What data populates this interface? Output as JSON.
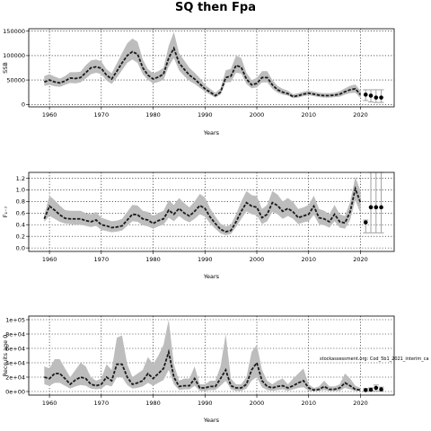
{
  "figure": {
    "title": "SQ then Fpa"
  },
  "chart_data": [
    {
      "type": "area",
      "ylabel": "SSB",
      "xlabel": "Years",
      "xlim": [
        1956,
        2026.5
      ],
      "ylim": [
        -5000,
        155000
      ],
      "xticks": [
        1960,
        1970,
        1980,
        1990,
        2000,
        2010,
        2020
      ],
      "xtick_labels": [
        "1960",
        "1970",
        "1980",
        "1990",
        "2000",
        "2010",
        "2020"
      ],
      "yticks": [
        0,
        50000,
        100000,
        150000
      ],
      "ytick_labels": [
        "0",
        "50000",
        "100000",
        "150000"
      ],
      "grid": true,
      "years": [
        1959,
        1960,
        1961,
        1962,
        1963,
        1964,
        1965,
        1966,
        1967,
        1968,
        1969,
        1970,
        1971,
        1972,
        1973,
        1974,
        1975,
        1976,
        1977,
        1978,
        1979,
        1980,
        1981,
        1982,
        1983,
        1984,
        1985,
        1986,
        1987,
        1988,
        1989,
        1990,
        1991,
        1992,
        1993,
        1994,
        1995,
        1996,
        1997,
        1998,
        1999,
        2000,
        2001,
        2002,
        2003,
        2004,
        2005,
        2006,
        2007,
        2008,
        2009,
        2010,
        2011,
        2012,
        2013,
        2014,
        2015,
        2016,
        2017,
        2018,
        2019,
        2020
      ],
      "median": [
        46000,
        50000,
        46000,
        44000,
        48000,
        54000,
        53000,
        55000,
        65000,
        75000,
        77000,
        74000,
        60000,
        52000,
        68000,
        85000,
        100000,
        108000,
        103000,
        75000,
        60000,
        52000,
        56000,
        62000,
        95000,
        115000,
        85000,
        72000,
        60000,
        52000,
        42000,
        32000,
        25000,
        18000,
        25000,
        55000,
        58000,
        80000,
        76000,
        52000,
        40000,
        43000,
        55000,
        55000,
        40000,
        30000,
        25000,
        22000,
        16000,
        18000,
        21000,
        23000,
        21000,
        19000,
        18000,
        18000,
        19000,
        21000,
        26000,
        30000,
        32000,
        20000
      ],
      "lower": [
        38000,
        40000,
        37000,
        36000,
        40000,
        44000,
        43000,
        45000,
        53000,
        62000,
        65000,
        62000,
        49000,
        42000,
        55000,
        70000,
        85000,
        92000,
        85000,
        62000,
        50000,
        43000,
        46000,
        50000,
        78000,
        95000,
        70000,
        58000,
        48000,
        42000,
        34000,
        26000,
        20000,
        14000,
        20000,
        45000,
        46000,
        65000,
        63000,
        42000,
        33000,
        35000,
        45000,
        45000,
        32000,
        24000,
        20000,
        18000,
        13000,
        14000,
        17000,
        19000,
        17000,
        15000,
        14000,
        14000,
        15000,
        16000,
        20000,
        23000,
        24000,
        13000
      ],
      "upper": [
        58000,
        62000,
        57000,
        53000,
        58000,
        66000,
        66000,
        67000,
        80000,
        90000,
        92000,
        88000,
        72000,
        64000,
        84000,
        105000,
        125000,
        135000,
        128000,
        92000,
        72000,
        64000,
        68000,
        75000,
        120000,
        148000,
        105000,
        90000,
        75000,
        65000,
        54000,
        40000,
        32000,
        24000,
        33000,
        70000,
        73000,
        100000,
        95000,
        65000,
        50000,
        54000,
        68000,
        68000,
        50000,
        38000,
        32000,
        28000,
        21000,
        23000,
        26000,
        28000,
        26000,
        24000,
        23000,
        23000,
        24000,
        27000,
        33000,
        38000,
        41000,
        28000
      ],
      "projection": {
        "years": [
          2021,
          2022,
          2023,
          2024
        ],
        "values": [
          20000,
          18000,
          14000,
          14000
        ],
        "lower": [
          8000,
          5000,
          4000,
          4000
        ],
        "upper": [
          30000,
          30000,
          30000,
          30000
        ]
      }
    },
    {
      "type": "area",
      "ylabel": "F₁₋₇",
      "xlabel": "Years",
      "xlim": [
        1956,
        2026.5
      ],
      "ylim": [
        -0.06,
        1.3
      ],
      "xticks": [
        1960,
        1970,
        1980,
        1990,
        2000,
        2010,
        2020
      ],
      "xtick_labels": [
        "1960",
        "1970",
        "1980",
        "1990",
        "2000",
        "2010",
        "2020"
      ],
      "yticks": [
        0,
        0.2,
        0.4,
        0.6,
        0.8,
        1.0,
        1.2
      ],
      "ytick_labels": [
        "0.0",
        "0.2",
        "0.4",
        "0.6",
        "0.8",
        "1.0",
        "1.2"
      ],
      "grid": true,
      "years": [
        1959,
        1960,
        1961,
        1962,
        1963,
        1964,
        1965,
        1966,
        1967,
        1968,
        1969,
        1970,
        1971,
        1972,
        1973,
        1974,
        1975,
        1976,
        1977,
        1978,
        1979,
        1980,
        1981,
        1982,
        1983,
        1984,
        1985,
        1986,
        1987,
        1988,
        1989,
        1990,
        1991,
        1992,
        1993,
        1994,
        1995,
        1996,
        1997,
        1998,
        1999,
        2000,
        2001,
        2002,
        2003,
        2004,
        2005,
        2006,
        2007,
        2008,
        2009,
        2010,
        2011,
        2012,
        2013,
        2014,
        2015,
        2016,
        2017,
        2018,
        2019,
        2020
      ],
      "median": [
        0.5,
        0.72,
        0.65,
        0.57,
        0.51,
        0.5,
        0.5,
        0.5,
        0.47,
        0.45,
        0.48,
        0.4,
        0.38,
        0.35,
        0.36,
        0.38,
        0.48,
        0.58,
        0.57,
        0.5,
        0.48,
        0.42,
        0.47,
        0.5,
        0.65,
        0.58,
        0.68,
        0.6,
        0.55,
        0.63,
        0.73,
        0.68,
        0.53,
        0.42,
        0.32,
        0.28,
        0.3,
        0.45,
        0.63,
        0.78,
        0.72,
        0.7,
        0.52,
        0.58,
        0.78,
        0.73,
        0.63,
        0.68,
        0.62,
        0.52,
        0.55,
        0.58,
        0.72,
        0.52,
        0.5,
        0.45,
        0.58,
        0.45,
        0.43,
        0.62,
        1.02,
        0.78
      ],
      "lower": [
        0.45,
        0.55,
        0.5,
        0.45,
        0.42,
        0.41,
        0.4,
        0.4,
        0.38,
        0.36,
        0.38,
        0.31,
        0.29,
        0.27,
        0.28,
        0.3,
        0.38,
        0.46,
        0.45,
        0.39,
        0.37,
        0.33,
        0.37,
        0.4,
        0.52,
        0.46,
        0.55,
        0.48,
        0.44,
        0.5,
        0.58,
        0.54,
        0.42,
        0.33,
        0.25,
        0.22,
        0.24,
        0.36,
        0.5,
        0.63,
        0.58,
        0.56,
        0.41,
        0.46,
        0.62,
        0.58,
        0.5,
        0.55,
        0.5,
        0.41,
        0.44,
        0.46,
        0.57,
        0.41,
        0.39,
        0.35,
        0.46,
        0.35,
        0.33,
        0.48,
        0.82,
        0.6
      ],
      "upper": [
        0.56,
        0.9,
        0.82,
        0.73,
        0.65,
        0.64,
        0.64,
        0.64,
        0.6,
        0.58,
        0.62,
        0.52,
        0.49,
        0.46,
        0.47,
        0.5,
        0.62,
        0.74,
        0.73,
        0.64,
        0.62,
        0.55,
        0.6,
        0.64,
        0.82,
        0.74,
        0.86,
        0.77,
        0.7,
        0.8,
        0.93,
        0.87,
        0.68,
        0.54,
        0.42,
        0.37,
        0.4,
        0.58,
        0.8,
        0.98,
        0.91,
        0.89,
        0.67,
        0.74,
        0.98,
        0.92,
        0.8,
        0.86,
        0.79,
        0.67,
        0.7,
        0.74,
        0.9,
        0.67,
        0.64,
        0.58,
        0.74,
        0.58,
        0.55,
        0.79,
        1.22,
        0.98
      ],
      "projection": {
        "years": [
          2021,
          2022,
          2023,
          2024
        ],
        "values": [
          0.44,
          0.7,
          0.7,
          0.7
        ],
        "lower": [
          0.26,
          0.26,
          0.26,
          0.26
        ],
        "upper": [
          0.48,
          1.3,
          1.3,
          1.3
        ]
      }
    },
    {
      "type": "area",
      "ylabel": "Recruits age 0",
      "xlabel": "Years",
      "xlim": [
        1956,
        2026.5
      ],
      "ylim": [
        -5000,
        105000
      ],
      "xticks": [
        1960,
        1970,
        1980,
        1990,
        2000,
        2010,
        2020
      ],
      "xtick_labels": [
        "1960",
        "1970",
        "1980",
        "1990",
        "2000",
        "2010",
        "2020"
      ],
      "yticks": [
        0,
        20000,
        40000,
        60000,
        80000,
        100000
      ],
      "ytick_labels": [
        "0e+00",
        "2e+04",
        "4e+04",
        "6e+04",
        "8e+04",
        "1e+05"
      ],
      "grid": true,
      "annotation": "stockassessment.org: Cod_5b1_2021_interim_ca",
      "years": [
        1959,
        1960,
        1961,
        1962,
        1963,
        1964,
        1965,
        1966,
        1967,
        1968,
        1969,
        1970,
        1971,
        1972,
        1973,
        1974,
        1975,
        1976,
        1977,
        1978,
        1979,
        1980,
        1981,
        1982,
        1983,
        1984,
        1985,
        1986,
        1987,
        1988,
        1989,
        1990,
        1991,
        1992,
        1993,
        1994,
        1995,
        1996,
        1997,
        1998,
        1999,
        2000,
        2001,
        2002,
        2003,
        2004,
        2005,
        2006,
        2007,
        2008,
        2009,
        2010,
        2011,
        2012,
        2013,
        2014,
        2015,
        2016,
        2017,
        2018,
        2019,
        2020
      ],
      "median": [
        20000,
        18000,
        25000,
        25000,
        18000,
        10000,
        16000,
        20000,
        18000,
        10000,
        8000,
        10000,
        20000,
        15000,
        38000,
        38000,
        20000,
        10000,
        12000,
        15000,
        25000,
        18000,
        25000,
        32000,
        55000,
        20000,
        7000,
        8000,
        8000,
        18000,
        5000,
        5000,
        7000,
        7000,
        18000,
        30000,
        8000,
        5000,
        5000,
        10000,
        30000,
        40000,
        15000,
        7000,
        5000,
        7000,
        8000,
        5000,
        8000,
        12000,
        15000,
        5000,
        2000,
        3000,
        7000,
        3000,
        3000,
        5000,
        12000,
        8000,
        3000,
        2000
      ],
      "lower": [
        10000,
        8000,
        12000,
        12000,
        8000,
        4000,
        7000,
        9000,
        8000,
        4000,
        3000,
        4000,
        9000,
        7000,
        20000,
        20000,
        9000,
        4000,
        5000,
        7000,
        12000,
        8000,
        12000,
        16000,
        30000,
        10000,
        2000,
        3000,
        3000,
        8000,
        1000,
        1000,
        2000,
        2000,
        8000,
        15000,
        3000,
        1000,
        1000,
        4000,
        15000,
        20000,
        6000,
        2000,
        1000,
        2000,
        3000,
        1000,
        3000,
        5000,
        6000,
        1000,
        300,
        800,
        2000,
        800,
        800,
        1000,
        5000,
        3000,
        600,
        300
      ],
      "upper": [
        35000,
        32000,
        45000,
        45000,
        32000,
        20000,
        30000,
        40000,
        35000,
        20000,
        15000,
        18000,
        38000,
        30000,
        75000,
        78000,
        38000,
        20000,
        25000,
        30000,
        48000,
        38000,
        50000,
        65000,
        100000,
        38000,
        15000,
        18000,
        18000,
        35000,
        10000,
        10000,
        15000,
        15000,
        35000,
        80000,
        18000,
        10000,
        10000,
        20000,
        55000,
        65000,
        30000,
        15000,
        10000,
        15000,
        18000,
        10000,
        18000,
        25000,
        32000,
        10000,
        5000,
        7000,
        15000,
        7000,
        7000,
        10000,
        25000,
        18000,
        8000,
        5000
      ],
      "projection": {
        "years": [
          2021,
          2022,
          2023,
          2024
        ],
        "values": [
          2000,
          2500,
          5000,
          3000
        ],
        "lower": [
          300,
          400,
          800,
          500
        ],
        "upper": [
          4000,
          5000,
          9000,
          6000
        ]
      }
    }
  ]
}
